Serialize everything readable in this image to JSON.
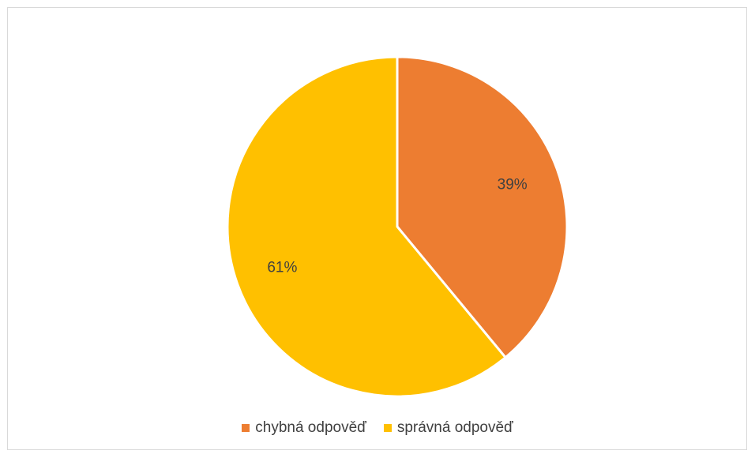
{
  "chart_data": {
    "type": "pie",
    "title": "",
    "categories": [
      "chybná odpověď",
      "správná odpověď"
    ],
    "values": [
      39,
      61
    ],
    "labels": [
      "39%",
      "61%"
    ],
    "colors": [
      "#ED7D31",
      "#FFC000"
    ],
    "start_angle_deg": 0,
    "direction": "clockwise",
    "legend_position": "bottom"
  }
}
